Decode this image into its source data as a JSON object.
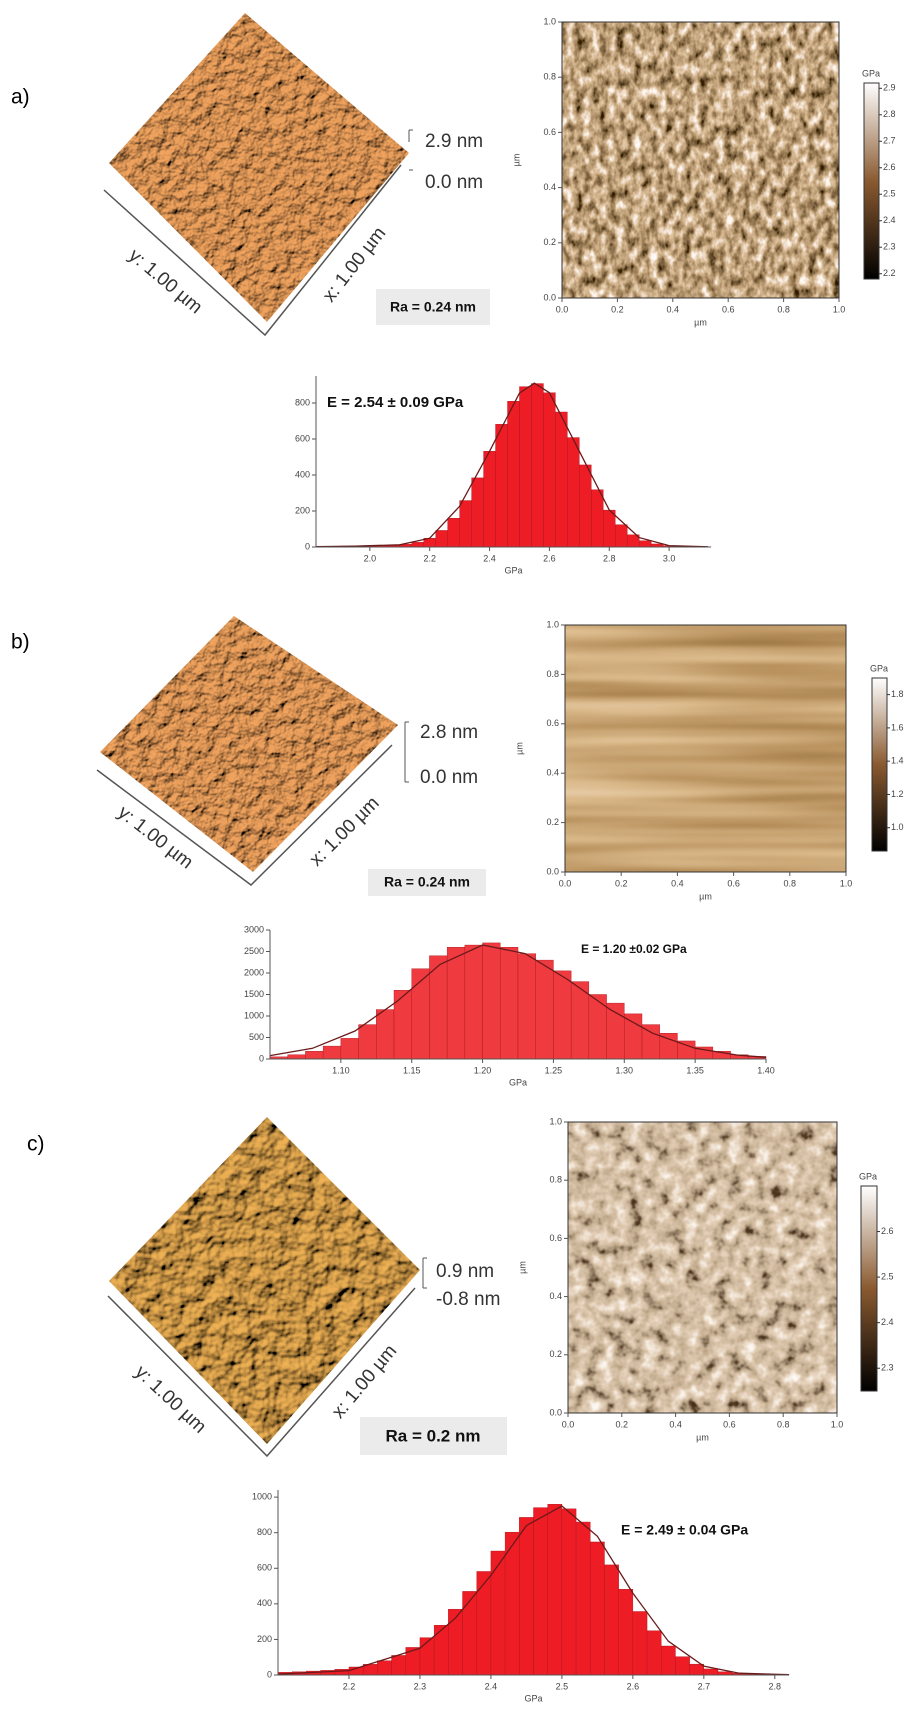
{
  "panels": [
    {
      "label": "a)",
      "topography": {
        "height_max": "2.9 nm",
        "height_min": "0.0 nm",
        "x_label": "x: 1.00 µm",
        "y_label": "y: 1.00 µm",
        "ra": "Ra = 0.24 nm"
      }
    },
    {
      "label": "b)",
      "topography": {
        "height_max": "2.8 nm",
        "height_min": "0.0 nm",
        "x_label": "x: 1.00 µm",
        "y_label": "y: 1.00 µm",
        "ra": "Ra = 0.24 nm"
      }
    },
    {
      "label": "c)",
      "topography": {
        "height_max": "0.9 nm",
        "height_min": "-0.8 nm",
        "x_label": "x: 1.00 µm",
        "y_label": "y: 1.00 µm",
        "ra": "Ra = 0.2 nm"
      }
    }
  ],
  "chart_data": [
    {
      "type": "map",
      "texture": "grainy",
      "x_label": "µm",
      "y_label": "µm",
      "xlim": [
        0,
        1
      ],
      "ylim": [
        0,
        1
      ],
      "xticks": [
        {
          "value": 0,
          "label": "0.0"
        },
        0.2,
        0.4,
        0.6,
        0.8,
        {
          "value": 1,
          "label": "1.0"
        }
      ],
      "yticks": [
        {
          "value": 0,
          "label": "0.0"
        },
        0.2,
        0.4,
        0.6,
        0.8,
        {
          "value": 1,
          "label": "1.0"
        }
      ],
      "colorbar": {
        "title": "GPa",
        "lim": [
          2.18,
          2.92
        ],
        "ticks": [
          2.2,
          2.3,
          2.4,
          2.5,
          2.6,
          2.7,
          2.8,
          2.9
        ],
        "colors": [
          "#000000",
          "#8a5a30",
          "#ffffff"
        ]
      }
    },
    {
      "type": "histogram",
      "annotation": "E = 2.54 ± 0.09 GPa",
      "x_label": "GPa",
      "color": "#ee1c25",
      "bins": [
        1.82,
        1.86,
        1.9,
        1.94,
        1.98,
        2.02,
        2.06,
        2.1,
        2.14,
        2.18,
        2.22,
        2.26,
        2.3,
        2.34,
        2.38,
        2.42,
        2.46,
        2.5,
        2.54,
        2.58,
        2.62,
        2.66,
        2.7,
        2.74,
        2.78,
        2.82,
        2.86,
        2.9,
        2.94,
        2.98,
        3.02,
        3.06,
        3.1,
        3.14
      ],
      "values": [
        3,
        4,
        5,
        6,
        8,
        10,
        12,
        15,
        26,
        49,
        92,
        160,
        258,
        384,
        532,
        682,
        810,
        891,
        908,
        857,
        750,
        608,
        456,
        318,
        205,
        124,
        68,
        35,
        17,
        7,
        3,
        1,
        1
      ],
      "fit": {
        "color": "#6b1a1a",
        "x": [
          1.82,
          1.95,
          2.1,
          2.2,
          2.3,
          2.4,
          2.5,
          2.55,
          2.6,
          2.7,
          2.8,
          2.9,
          3.0,
          3.13
        ],
        "values": [
          2,
          5,
          12,
          49,
          226,
          532,
          855,
          910,
          857,
          532,
          205,
          52,
          8,
          1
        ]
      },
      "xlim": [
        1.82,
        3.14
      ],
      "ylim": [
        0,
        950
      ],
      "xticks": [
        {
          "value": 2,
          "label": "2.0"
        },
        2.2,
        2.4,
        2.6,
        2.8,
        {
          "value": 3,
          "label": "3.0"
        }
      ],
      "yticks": [
        0,
        200,
        400,
        600,
        800
      ]
    },
    {
      "type": "map",
      "texture": "banded",
      "x_label": "µm",
      "y_label": "µm",
      "xlim": [
        0,
        1
      ],
      "ylim": [
        0,
        1
      ],
      "xticks": [
        {
          "value": 0,
          "label": "0.0"
        },
        0.2,
        0.4,
        0.6,
        0.8,
        {
          "value": 1,
          "label": "1.0"
        }
      ],
      "yticks": [
        {
          "value": 0,
          "label": "0.0"
        },
        0.2,
        0.4,
        0.6,
        0.8,
        {
          "value": 1,
          "label": "1.0"
        }
      ],
      "colorbar": {
        "title": "GPa",
        "lim": [
          0.86,
          1.9
        ],
        "ticks": [
          {
            "value": 1,
            "label": "1.0"
          },
          1.2,
          1.4,
          1.6,
          1.8
        ],
        "colors": [
          "#000000",
          "#8a5a30",
          "#ffffff"
        ]
      }
    },
    {
      "type": "histogram",
      "annotation": "E = 1.20 ±0.02 GPa",
      "x_label": "GPa",
      "color": "#ef3a40",
      "bins": [
        1.05,
        1.0625,
        1.075,
        1.0875,
        1.1,
        1.1125,
        1.125,
        1.1375,
        1.15,
        1.1625,
        1.175,
        1.1875,
        1.2,
        1.2125,
        1.225,
        1.2375,
        1.25,
        1.2625,
        1.275,
        1.2875,
        1.3,
        1.3125,
        1.325,
        1.3375,
        1.35,
        1.3625,
        1.375,
        1.3875,
        1.4
      ],
      "values": [
        50,
        100,
        180,
        300,
        480,
        800,
        1150,
        1600,
        2100,
        2400,
        2600,
        2650,
        2700,
        2600,
        2450,
        2300,
        2050,
        1800,
        1500,
        1300,
        1050,
        800,
        600,
        420,
        280,
        180,
        100,
        60
      ],
      "fit": {
        "color": "#6b1a1a",
        "x": [
          1.05,
          1.08,
          1.11,
          1.14,
          1.17,
          1.2,
          1.23,
          1.26,
          1.29,
          1.32,
          1.35,
          1.38,
          1.4
        ],
        "values": [
          80,
          250,
          650,
          1350,
          2200,
          2650,
          2450,
          1850,
          1150,
          600,
          250,
          90,
          40
        ]
      },
      "xlim": [
        1.05,
        1.4
      ],
      "ylim": [
        0,
        3000
      ],
      "xticks": [
        {
          "value": 1.1,
          "label": "1.10"
        },
        1.15,
        {
          "value": 1.2,
          "label": "1.20"
        },
        1.25,
        {
          "value": 1.3,
          "label": "1.30"
        },
        1.35,
        {
          "value": 1.4,
          "label": "1.40"
        }
      ],
      "yticks": [
        0,
        500,
        1000,
        1500,
        2000,
        2500,
        3000
      ]
    },
    {
      "type": "map",
      "texture": "blotchy",
      "x_label": "µm",
      "y_label": "µm",
      "xlim": [
        0,
        1
      ],
      "ylim": [
        0,
        1
      ],
      "xticks": [
        {
          "value": 0,
          "label": "0.0"
        },
        0.2,
        0.4,
        0.6,
        0.8,
        {
          "value": 1,
          "label": "1.0"
        }
      ],
      "yticks": [
        {
          "value": 0,
          "label": "0.0"
        },
        0.2,
        0.4,
        0.6,
        0.8,
        {
          "value": 1,
          "label": "1.0"
        }
      ],
      "colorbar": {
        "title": "GPa",
        "lim": [
          2.25,
          2.7
        ],
        "ticks": [
          2.3,
          2.4,
          2.5,
          2.6
        ],
        "colors": [
          "#000000",
          "#8a5a30",
          "#ffffff"
        ]
      }
    },
    {
      "type": "histogram",
      "annotation": "E = 2.49 ± 0.04 GPa",
      "x_label": "GPa",
      "color": "#ee1c25",
      "bins": [
        2.1,
        2.12,
        2.14,
        2.16,
        2.18,
        2.2,
        2.22,
        2.24,
        2.26,
        2.28,
        2.3,
        2.32,
        2.34,
        2.36,
        2.38,
        2.4,
        2.42,
        2.44,
        2.46,
        2.48,
        2.5,
        2.52,
        2.54,
        2.56,
        2.58,
        2.6,
        2.62,
        2.64,
        2.66,
        2.68,
        2.7,
        2.72,
        2.74,
        2.76,
        2.78,
        2.8,
        2.82
      ],
      "values": [
        15,
        18,
        22,
        26,
        32,
        45,
        60,
        80,
        110,
        155,
        210,
        280,
        370,
        470,
        582,
        697,
        803,
        886,
        941,
        960,
        934,
        860,
        748,
        619,
        482,
        357,
        249,
        163,
        103,
        61,
        34,
        18,
        10,
        6,
        4,
        3
      ],
      "fit": {
        "color": "#6b1a1a",
        "x": [
          2.1,
          2.2,
          2.3,
          2.35,
          2.4,
          2.45,
          2.5,
          2.55,
          2.6,
          2.65,
          2.7,
          2.75,
          2.82
        ],
        "values": [
          5,
          25,
          150,
          320,
          560,
          840,
          950,
          780,
          460,
          190,
          50,
          10,
          2
        ]
      },
      "xlim": [
        2.1,
        2.82
      ],
      "ylim": [
        0,
        1040
      ],
      "xticks": [
        2.2,
        2.3,
        2.4,
        2.5,
        2.6,
        2.7,
        2.8
      ],
      "yticks": [
        0,
        200,
        400,
        600,
        800,
        1000
      ]
    }
  ]
}
